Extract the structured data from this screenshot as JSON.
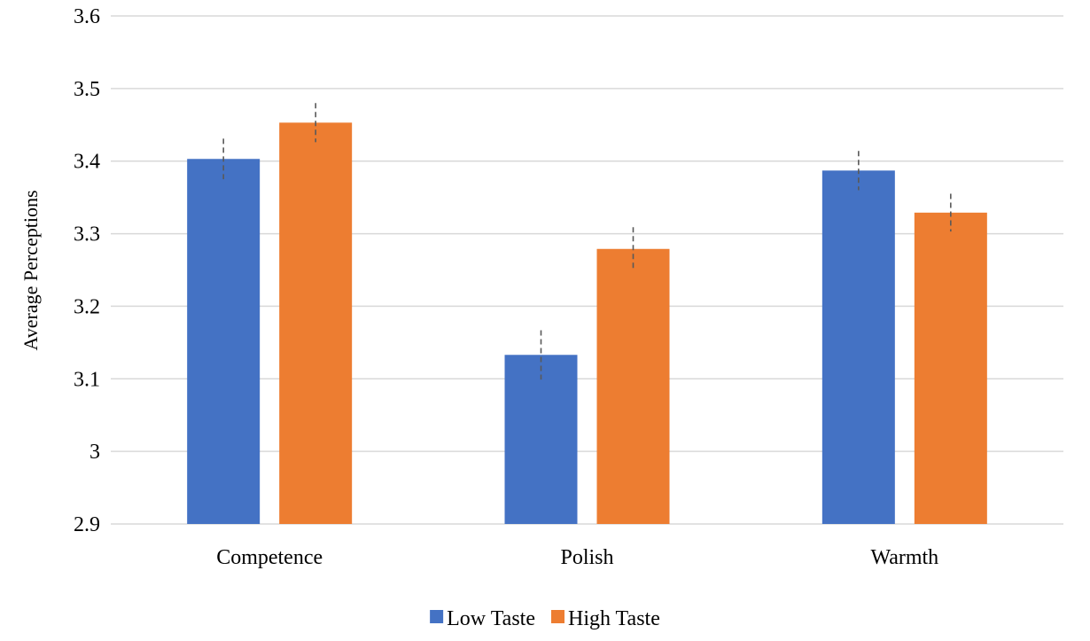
{
  "chart_data": {
    "type": "bar",
    "title": "",
    "xlabel": "",
    "ylabel": "Average Perceptions",
    "categories": [
      "Competence",
      "Polish",
      "Warmth"
    ],
    "series": [
      {
        "name": "Low Taste",
        "color": "#4472c4",
        "values": [
          3.403,
          3.133,
          3.387
        ],
        "error": [
          0.028,
          0.034,
          0.027
        ]
      },
      {
        "name": "High Taste",
        "color": "#ed7d31",
        "values": [
          3.453,
          3.279,
          3.329
        ],
        "error": [
          0.027,
          0.03,
          0.026
        ]
      }
    ],
    "ylim": [
      2.9,
      3.6
    ],
    "yticks": [
      "2.9",
      "3",
      "3.1",
      "3.2",
      "3.3",
      "3.4",
      "3.5",
      "3.6"
    ],
    "grid": true,
    "legend_position": "bottom"
  }
}
